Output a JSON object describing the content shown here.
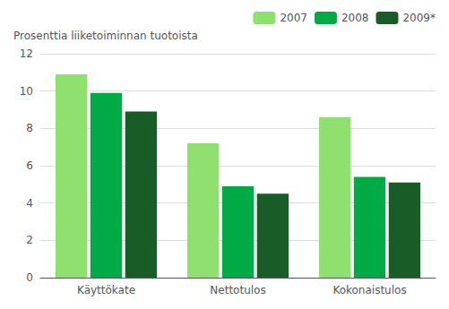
{
  "chart_data": {
    "type": "bar",
    "ylabel": "Prosenttia liiketoiminnan tuotoista",
    "categories": [
      "Käyttökate",
      "Nettotulos",
      "Kokonaistulos"
    ],
    "series": [
      {
        "name": "2007",
        "color": "#90e070",
        "values": [
          10.9,
          7.2,
          8.6
        ]
      },
      {
        "name": "2008",
        "color": "#00aa44",
        "values": [
          9.9,
          4.9,
          5.4
        ]
      },
      {
        "name": "2009*",
        "color": "#1a5c28",
        "values": [
          8.9,
          4.5,
          5.1
        ]
      }
    ],
    "ylim": [
      0,
      12
    ],
    "yticks": [
      0,
      2,
      4,
      6,
      8,
      10,
      12
    ],
    "grid": true,
    "legend": "upper right"
  }
}
